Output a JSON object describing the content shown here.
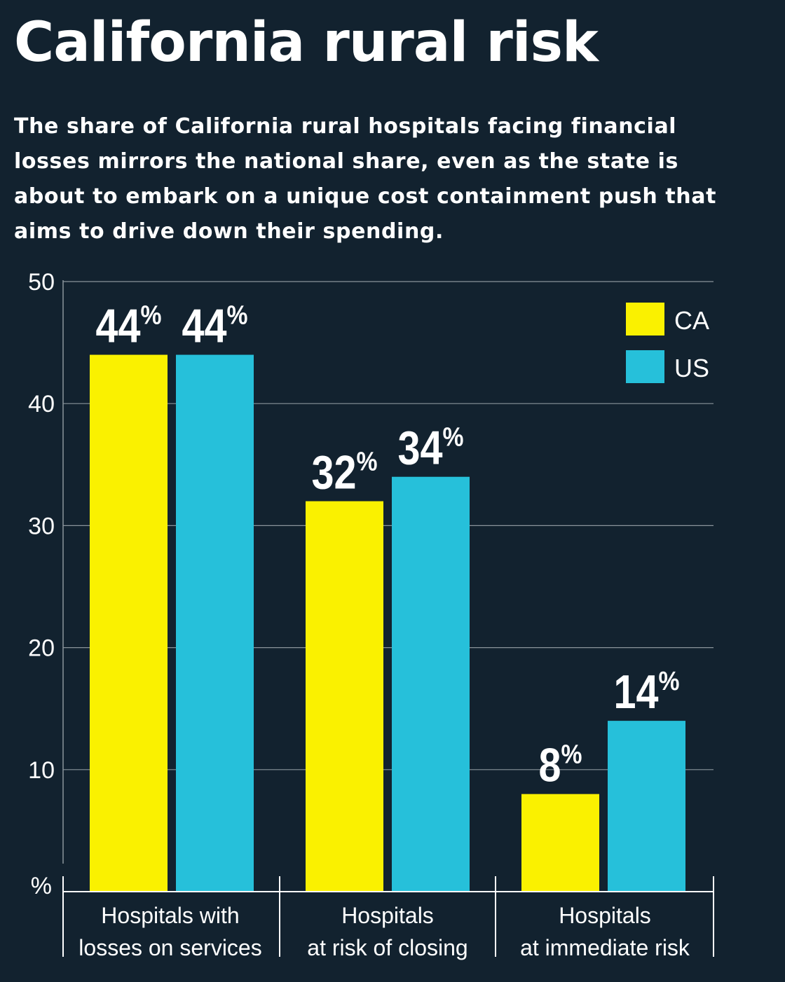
{
  "title": "California rural risk",
  "subtitle": "The share of California rural hospitals facing financial losses mirrors the national share, even as the state is about to embark on a unique cost containment push that aims to drive down their spending.",
  "colors": {
    "background": "#12222f",
    "ca": "#faf100",
    "us": "#26c0da",
    "grid": "#8a949b",
    "text": "#ffffff"
  },
  "chart_data": {
    "type": "bar",
    "title": "California rural risk",
    "ylabel": "%",
    "ylim": [
      0,
      50
    ],
    "yticks": [
      10,
      20,
      30,
      40,
      50
    ],
    "grid": true,
    "legend_position": "top-right",
    "categories": [
      [
        "Hospitals with",
        "losses on services"
      ],
      [
        "Hospitals",
        "at risk of closing"
      ],
      [
        "Hospitals",
        "at immediate risk"
      ]
    ],
    "series": [
      {
        "name": "CA",
        "color": "#faf100",
        "values": [
          44,
          32,
          8
        ],
        "labels": [
          "44",
          "32",
          "8"
        ]
      },
      {
        "name": "US",
        "color": "#26c0da",
        "values": [
          44,
          34,
          14
        ],
        "labels": [
          "44",
          "34",
          "14"
        ]
      }
    ],
    "value_suffix": "%"
  }
}
